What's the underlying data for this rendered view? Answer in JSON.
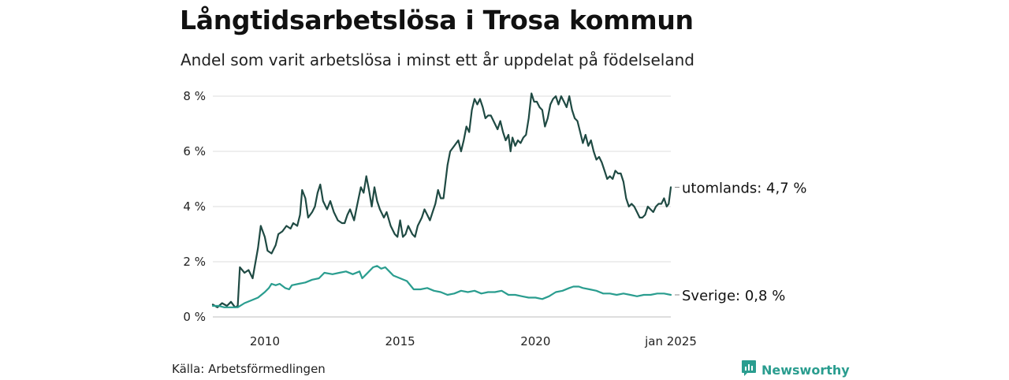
{
  "title": "Långtidsarbetslösa i Trosa kommun",
  "subtitle": "Andel som varit arbetslösa i minst ett år uppdelat på födelseland",
  "source": "Källa: Arbetsförmedlingen",
  "brand": {
    "name": "Newsworthy",
    "icon": "newsworthy-logo-icon"
  },
  "chart_data": {
    "type": "line",
    "xlim": [
      2008.08,
      2025.0
    ],
    "ylim": [
      0,
      8.2
    ],
    "y_ticks": [
      0,
      2,
      4,
      6,
      8
    ],
    "y_tick_labels": [
      "0 %",
      "2 %",
      "4 %",
      "6 %",
      "8 %"
    ],
    "x_ticks": [
      2010,
      2015,
      2020,
      2025
    ],
    "x_tick_labels": [
      "2010",
      "2015",
      "2020",
      "jan 2025"
    ],
    "grid": "horizontal",
    "series": [
      {
        "name": "utomlands",
        "color": "#1f4a43",
        "end_label": "utomlands: 4,7 %",
        "points": [
          [
            2008.08,
            0.45
          ],
          [
            2008.25,
            0.35
          ],
          [
            2008.42,
            0.5
          ],
          [
            2008.6,
            0.4
          ],
          [
            2008.75,
            0.55
          ],
          [
            2008.9,
            0.35
          ],
          [
            2009.0,
            0.4
          ],
          [
            2009.08,
            1.8
          ],
          [
            2009.25,
            1.6
          ],
          [
            2009.4,
            1.7
          ],
          [
            2009.55,
            1.4
          ],
          [
            2009.75,
            2.5
          ],
          [
            2009.85,
            3.3
          ],
          [
            2010.0,
            2.9
          ],
          [
            2010.1,
            2.4
          ],
          [
            2010.25,
            2.3
          ],
          [
            2010.4,
            2.6
          ],
          [
            2010.5,
            3.0
          ],
          [
            2010.65,
            3.1
          ],
          [
            2010.8,
            3.3
          ],
          [
            2010.95,
            3.2
          ],
          [
            2011.05,
            3.4
          ],
          [
            2011.2,
            3.3
          ],
          [
            2011.3,
            3.7
          ],
          [
            2011.38,
            4.6
          ],
          [
            2011.5,
            4.3
          ],
          [
            2011.6,
            3.6
          ],
          [
            2011.75,
            3.8
          ],
          [
            2011.85,
            4.0
          ],
          [
            2011.95,
            4.5
          ],
          [
            2012.05,
            4.8
          ],
          [
            2012.15,
            4.2
          ],
          [
            2012.3,
            3.9
          ],
          [
            2012.42,
            4.2
          ],
          [
            2012.55,
            3.8
          ],
          [
            2012.7,
            3.5
          ],
          [
            2012.85,
            3.4
          ],
          [
            2012.95,
            3.4
          ],
          [
            2013.05,
            3.7
          ],
          [
            2013.15,
            3.9
          ],
          [
            2013.3,
            3.5
          ],
          [
            2013.4,
            4.0
          ],
          [
            2013.55,
            4.7
          ],
          [
            2013.65,
            4.5
          ],
          [
            2013.75,
            5.1
          ],
          [
            2013.85,
            4.6
          ],
          [
            2013.95,
            4.0
          ],
          [
            2014.05,
            4.7
          ],
          [
            2014.15,
            4.2
          ],
          [
            2014.25,
            3.9
          ],
          [
            2014.4,
            3.6
          ],
          [
            2014.5,
            3.8
          ],
          [
            2014.65,
            3.3
          ],
          [
            2014.8,
            3.0
          ],
          [
            2014.9,
            2.9
          ],
          [
            2015.0,
            3.5
          ],
          [
            2015.1,
            2.9
          ],
          [
            2015.2,
            3.0
          ],
          [
            2015.3,
            3.3
          ],
          [
            2015.45,
            3.0
          ],
          [
            2015.55,
            2.9
          ],
          [
            2015.65,
            3.3
          ],
          [
            2015.8,
            3.6
          ],
          [
            2015.9,
            3.9
          ],
          [
            2016.0,
            3.7
          ],
          [
            2016.1,
            3.5
          ],
          [
            2016.2,
            3.8
          ],
          [
            2016.3,
            4.1
          ],
          [
            2016.4,
            4.6
          ],
          [
            2016.5,
            4.3
          ],
          [
            2016.6,
            4.3
          ],
          [
            2016.75,
            5.5
          ],
          [
            2016.85,
            6.0
          ],
          [
            2017.0,
            6.2
          ],
          [
            2017.15,
            6.4
          ],
          [
            2017.25,
            6.0
          ],
          [
            2017.35,
            6.4
          ],
          [
            2017.45,
            6.9
          ],
          [
            2017.55,
            6.7
          ],
          [
            2017.65,
            7.5
          ],
          [
            2017.75,
            7.9
          ],
          [
            2017.85,
            7.7
          ],
          [
            2017.95,
            7.9
          ],
          [
            2018.05,
            7.6
          ],
          [
            2018.15,
            7.2
          ],
          [
            2018.25,
            7.3
          ],
          [
            2018.35,
            7.3
          ],
          [
            2018.5,
            7.0
          ],
          [
            2018.6,
            6.8
          ],
          [
            2018.7,
            7.1
          ],
          [
            2018.8,
            6.7
          ],
          [
            2018.9,
            6.4
          ],
          [
            2019.0,
            6.6
          ],
          [
            2019.08,
            6.0
          ],
          [
            2019.15,
            6.5
          ],
          [
            2019.25,
            6.2
          ],
          [
            2019.35,
            6.4
          ],
          [
            2019.45,
            6.3
          ],
          [
            2019.55,
            6.5
          ],
          [
            2019.65,
            6.6
          ],
          [
            2019.75,
            7.2
          ],
          [
            2019.85,
            8.1
          ],
          [
            2019.95,
            7.8
          ],
          [
            2020.05,
            7.8
          ],
          [
            2020.15,
            7.6
          ],
          [
            2020.25,
            7.5
          ],
          [
            2020.35,
            6.9
          ],
          [
            2020.45,
            7.2
          ],
          [
            2020.55,
            7.7
          ],
          [
            2020.65,
            7.9
          ],
          [
            2020.75,
            8.0
          ],
          [
            2020.85,
            7.7
          ],
          [
            2020.95,
            8.0
          ],
          [
            2021.05,
            7.8
          ],
          [
            2021.15,
            7.6
          ],
          [
            2021.25,
            8.0
          ],
          [
            2021.35,
            7.5
          ],
          [
            2021.45,
            7.2
          ],
          [
            2021.55,
            7.1
          ],
          [
            2021.65,
            6.7
          ],
          [
            2021.75,
            6.3
          ],
          [
            2021.85,
            6.6
          ],
          [
            2021.95,
            6.2
          ],
          [
            2022.05,
            6.4
          ],
          [
            2022.15,
            6.0
          ],
          [
            2022.25,
            5.7
          ],
          [
            2022.35,
            5.8
          ],
          [
            2022.45,
            5.6
          ],
          [
            2022.55,
            5.3
          ],
          [
            2022.65,
            5.0
          ],
          [
            2022.75,
            5.1
          ],
          [
            2022.85,
            5.0
          ],
          [
            2022.95,
            5.3
          ],
          [
            2023.05,
            5.2
          ],
          [
            2023.15,
            5.2
          ],
          [
            2023.25,
            4.9
          ],
          [
            2023.35,
            4.3
          ],
          [
            2023.45,
            4.0
          ],
          [
            2023.55,
            4.1
          ],
          [
            2023.65,
            4.0
          ],
          [
            2023.75,
            3.8
          ],
          [
            2023.85,
            3.6
          ],
          [
            2023.95,
            3.6
          ],
          [
            2024.05,
            3.7
          ],
          [
            2024.15,
            4.0
          ],
          [
            2024.25,
            3.9
          ],
          [
            2024.35,
            3.8
          ],
          [
            2024.45,
            4.0
          ],
          [
            2024.55,
            4.1
          ],
          [
            2024.65,
            4.1
          ],
          [
            2024.75,
            4.3
          ],
          [
            2024.85,
            4.0
          ],
          [
            2024.92,
            4.1
          ],
          [
            2025.0,
            4.7
          ]
        ]
      },
      {
        "name": "Sverige",
        "color": "#2a9d8f",
        "end_label": "Sverige: 0,8 %",
        "points": [
          [
            2008.08,
            0.4
          ],
          [
            2008.3,
            0.4
          ],
          [
            2008.5,
            0.35
          ],
          [
            2008.75,
            0.35
          ],
          [
            2009.0,
            0.35
          ],
          [
            2009.25,
            0.5
          ],
          [
            2009.5,
            0.6
          ],
          [
            2009.75,
            0.7
          ],
          [
            2010.0,
            0.9
          ],
          [
            2010.15,
            1.05
          ],
          [
            2010.25,
            1.2
          ],
          [
            2010.4,
            1.15
          ],
          [
            2010.55,
            1.2
          ],
          [
            2010.75,
            1.05
          ],
          [
            2010.9,
            1.0
          ],
          [
            2011.0,
            1.15
          ],
          [
            2011.25,
            1.2
          ],
          [
            2011.5,
            1.25
          ],
          [
            2011.75,
            1.35
          ],
          [
            2012.0,
            1.4
          ],
          [
            2012.2,
            1.6
          ],
          [
            2012.5,
            1.55
          ],
          [
            2012.75,
            1.6
          ],
          [
            2013.0,
            1.65
          ],
          [
            2013.25,
            1.55
          ],
          [
            2013.5,
            1.65
          ],
          [
            2013.6,
            1.4
          ],
          [
            2013.75,
            1.55
          ],
          [
            2014.0,
            1.8
          ],
          [
            2014.15,
            1.85
          ],
          [
            2014.3,
            1.75
          ],
          [
            2014.45,
            1.8
          ],
          [
            2014.6,
            1.65
          ],
          [
            2014.75,
            1.5
          ],
          [
            2015.0,
            1.4
          ],
          [
            2015.25,
            1.3
          ],
          [
            2015.5,
            1.0
          ],
          [
            2015.75,
            1.0
          ],
          [
            2016.0,
            1.05
          ],
          [
            2016.25,
            0.95
          ],
          [
            2016.5,
            0.9
          ],
          [
            2016.75,
            0.8
          ],
          [
            2017.0,
            0.85
          ],
          [
            2017.25,
            0.95
          ],
          [
            2017.5,
            0.9
          ],
          [
            2017.75,
            0.95
          ],
          [
            2018.0,
            0.85
          ],
          [
            2018.25,
            0.9
          ],
          [
            2018.5,
            0.9
          ],
          [
            2018.75,
            0.95
          ],
          [
            2019.0,
            0.8
          ],
          [
            2019.25,
            0.8
          ],
          [
            2019.5,
            0.75
          ],
          [
            2019.75,
            0.7
          ],
          [
            2020.0,
            0.7
          ],
          [
            2020.25,
            0.65
          ],
          [
            2020.5,
            0.75
          ],
          [
            2020.75,
            0.9
          ],
          [
            2021.0,
            0.95
          ],
          [
            2021.25,
            1.05
          ],
          [
            2021.4,
            1.1
          ],
          [
            2021.6,
            1.1
          ],
          [
            2021.75,
            1.05
          ],
          [
            2022.0,
            1.0
          ],
          [
            2022.25,
            0.95
          ],
          [
            2022.5,
            0.85
          ],
          [
            2022.75,
            0.85
          ],
          [
            2023.0,
            0.8
          ],
          [
            2023.25,
            0.85
          ],
          [
            2023.5,
            0.8
          ],
          [
            2023.75,
            0.75
          ],
          [
            2024.0,
            0.8
          ],
          [
            2024.25,
            0.8
          ],
          [
            2024.5,
            0.85
          ],
          [
            2024.75,
            0.85
          ],
          [
            2025.0,
            0.8
          ]
        ]
      }
    ]
  }
}
